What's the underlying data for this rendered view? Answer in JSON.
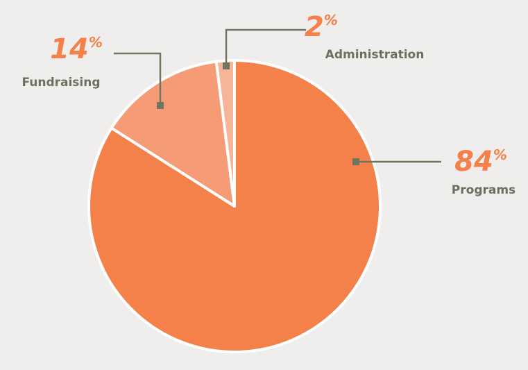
{
  "chart_data": {
    "type": "pie",
    "categories": [
      "Programs",
      "Fundraising",
      "Administration"
    ],
    "values": [
      84,
      14,
      2
    ],
    "value_labels": [
      "84%",
      "14%",
      "2%"
    ],
    "colors": [
      "#f4804a",
      "#f59c77",
      "#f7b598"
    ]
  }
}
